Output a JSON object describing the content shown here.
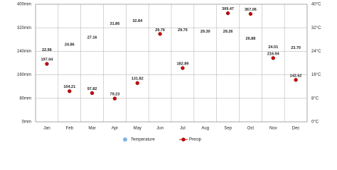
{
  "chart_data": {
    "type": "climate",
    "categories": [
      "Jan",
      "Feb",
      "Mar",
      "Apr",
      "May",
      "Jun",
      "Jul",
      "Aug",
      "Sep",
      "Oct",
      "Nov",
      "Dec"
    ],
    "series": [
      {
        "name": "Temperature",
        "color": "#7fb3e6",
        "axis": "y2",
        "values": [
          22.96,
          24.86,
          27.16,
          31.86,
          32.84,
          29.76,
          29.75,
          29.3,
          29.26,
          26.88,
          24.01,
          23.7
        ],
        "value_labels": [
          "22.96",
          "24.86",
          "27.16",
          "31.86",
          "32.84",
          "29.76",
          "29.75",
          "29.30",
          "29.26",
          "26.88",
          "24.01",
          "23.70"
        ]
      },
      {
        "name": "Precip",
        "color": "#cc0000",
        "values": [
          197.04,
          104.21,
          97.82,
          79.23,
          131.82,
          299,
          182.89,
          null,
          369.47,
          367.06,
          216.94,
          142.62
        ],
        "value_labels": [
          "197.04",
          "104.21",
          "97.82",
          "79.23",
          "131.82",
          null,
          "182.89",
          null,
          "369.47",
          "367.06",
          "216.94",
          "142.62"
        ]
      }
    ],
    "ylim": [
      0,
      400
    ],
    "yticks": [
      {
        "value": 0,
        "label": "0mm"
      },
      {
        "value": 80,
        "label": "80mm"
      },
      {
        "value": 160,
        "label": "160mm"
      },
      {
        "value": 240,
        "label": "240mm"
      },
      {
        "value": 320,
        "label": "320mm"
      },
      {
        "value": 400,
        "label": "400mm"
      }
    ],
    "y2lim": [
      0,
      40
    ],
    "y2ticks": [
      {
        "value": 0,
        "label": "0°C"
      },
      {
        "value": 8,
        "label": "8°C"
      },
      {
        "value": 16,
        "label": "16°C"
      },
      {
        "value": 24,
        "label": "24°C"
      },
      {
        "value": 32,
        "label": "32°C"
      },
      {
        "value": 40,
        "label": "40°C"
      }
    ],
    "grid": true
  }
}
